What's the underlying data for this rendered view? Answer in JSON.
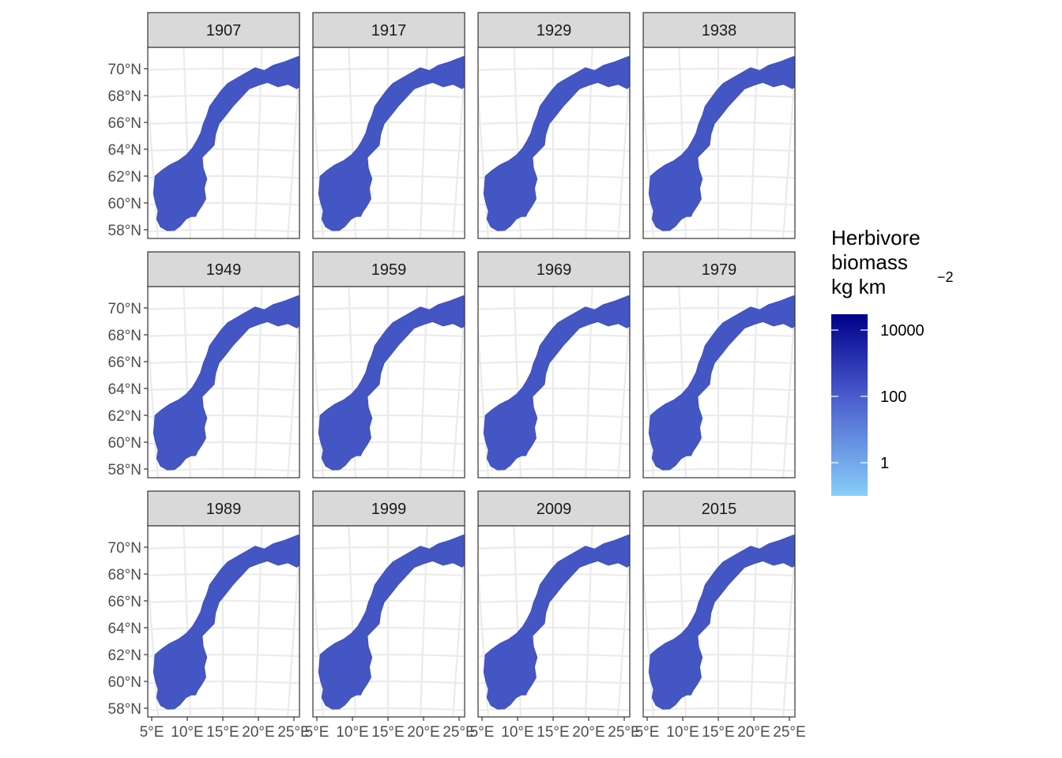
{
  "chart_data": {
    "type": "choropleth-map-facets",
    "region": "Norway",
    "panels": [
      "1907",
      "1917",
      "1929",
      "1938",
      "1949",
      "1959",
      "1969",
      "1979",
      "1989",
      "1999",
      "2009",
      "2015"
    ],
    "facet_layout": {
      "rows": 3,
      "cols": 4
    },
    "latitude_ticks": [
      {
        "lat": 70,
        "label": "70°N"
      },
      {
        "lat": 68,
        "label": "68°N"
      },
      {
        "lat": 66,
        "label": "66°N"
      },
      {
        "lat": 64,
        "label": "64°N"
      },
      {
        "lat": 62,
        "label": "62°N"
      },
      {
        "lat": 60,
        "label": "60°N"
      },
      {
        "lat": 58,
        "label": "58°N"
      }
    ],
    "longitude_ticks": [
      {
        "lon": 5,
        "label": "5°E"
      },
      {
        "lon": 10,
        "label": "10°E"
      },
      {
        "lon": 15,
        "label": "15°E"
      },
      {
        "lon": 20,
        "label": "20°E"
      },
      {
        "lon": 25,
        "label": "25°E"
      }
    ],
    "legend": {
      "title_lines": [
        "Herbivore",
        "biomass",
        "kg km"
      ],
      "superscript": "−2",
      "scale": "log10",
      "breaks": [
        {
          "value": 10000,
          "label": "10000"
        },
        {
          "value": 100,
          "label": "100"
        },
        {
          "value": 1,
          "label": "1"
        }
      ],
      "range": [
        0.1,
        30000
      ],
      "color_low": "#87cefa",
      "color_mid": "#4a5ccc",
      "color_high": "#00008b"
    },
    "fill_color_typical": "#4455c4",
    "grid": true
  }
}
